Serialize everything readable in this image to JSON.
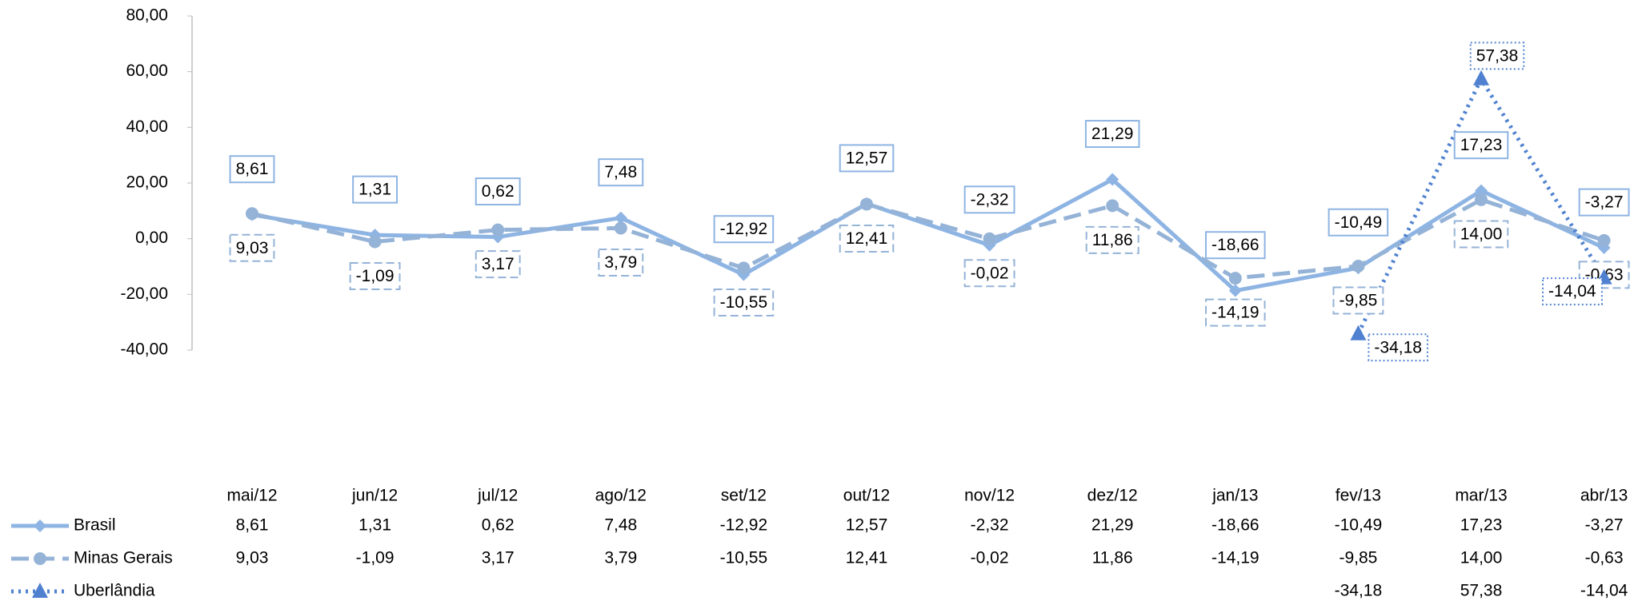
{
  "chart_data": {
    "type": "line",
    "categories": [
      "mai/12",
      "jun/12",
      "jul/12",
      "ago/12",
      "set/12",
      "out/12",
      "nov/12",
      "dez/12",
      "jan/13",
      "fev/13",
      "mar/13",
      "abr/13"
    ],
    "series": [
      {
        "name": "Brasil",
        "color": "#8eb4e3",
        "style": "solid",
        "marker": "diamond",
        "values": [
          8.61,
          1.31,
          0.62,
          7.48,
          -12.92,
          12.57,
          -2.32,
          21.29,
          -18.66,
          -10.49,
          17.23,
          -3.27
        ],
        "value_labels": [
          "8,61",
          "1,31",
          "0,62",
          "7,48",
          "-12,92",
          "12,57",
          "-2,32",
          "21,29",
          "-18,66",
          "-10,49",
          "17,23",
          "-3,27"
        ]
      },
      {
        "name": "Minas Gerais",
        "color": "#95b3d7",
        "style": "dashed",
        "marker": "circle",
        "values": [
          9.03,
          -1.09,
          3.17,
          3.79,
          -10.55,
          12.41,
          -0.02,
          11.86,
          -14.19,
          -9.85,
          14.0,
          -0.63
        ],
        "value_labels": [
          "9,03",
          "-1,09",
          "3,17",
          "3,79",
          "-10,55",
          "12,41",
          "-0,02",
          "11,86",
          "-14,19",
          "-9,85",
          "14,00",
          "-0,63"
        ]
      },
      {
        "name": "Uberlândia",
        "color": "#4f81d0",
        "style": "dotted",
        "marker": "triangle",
        "values": [
          null,
          null,
          null,
          null,
          null,
          null,
          null,
          null,
          null,
          -34.18,
          57.38,
          -14.04
        ],
        "value_labels": [
          null,
          null,
          null,
          null,
          null,
          null,
          null,
          null,
          null,
          "-34,18",
          "57,38",
          "-14,04"
        ]
      }
    ],
    "ylim": [
      -40,
      80
    ],
    "yticks": [
      {
        "value": -40,
        "label": "-40,00"
      },
      {
        "value": -20,
        "label": "-20,00"
      },
      {
        "value": 0,
        "label": "0,00"
      },
      {
        "value": 20,
        "label": "20,00"
      },
      {
        "value": 40,
        "label": "40,00"
      },
      {
        "value": 60,
        "label": "60,00"
      },
      {
        "value": 80,
        "label": "80,00"
      }
    ],
    "data_table": true
  }
}
